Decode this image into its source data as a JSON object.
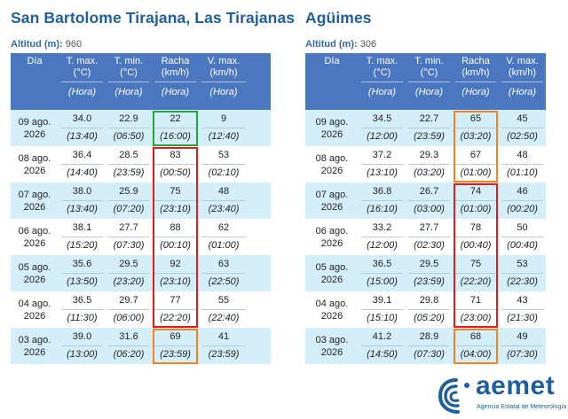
{
  "stations": [
    {
      "title": "San Bartolome Tirajana, Las Tirajanas",
      "altitude_label": "Altitud (m):",
      "altitude_value": "960",
      "headers": [
        "Día",
        "T. max.\n(°C)",
        "T. min.\n(°C)",
        "Racha\n(km/h)",
        "V. max.\n(km/h)"
      ],
      "subheaders": [
        "",
        "(Hora)",
        "(Hora)",
        "(Hora)",
        "(Hora)"
      ],
      "rows": [
        {
          "day": "09 ago.\n2026",
          "tmax": "34.0",
          "tmax_h": "(13:40)",
          "tmin": "22.9",
          "tmin_h": "(06:50)",
          "racha": "22",
          "racha_h": "(16:00)",
          "vmax": "9",
          "vmax_h": "(12:40)"
        },
        {
          "day": "08 ago.\n2026",
          "tmax": "36.4",
          "tmax_h": "(14:40)",
          "tmin": "28.5",
          "tmin_h": "(23:59)",
          "racha": "83",
          "racha_h": "(00:50)",
          "vmax": "53",
          "vmax_h": "(02:10)"
        },
        {
          "day": "07 ago.\n2026",
          "tmax": "38.0",
          "tmax_h": "(13:40)",
          "tmin": "25.9",
          "tmin_h": "(07:20)",
          "racha": "75",
          "racha_h": "(23:10)",
          "vmax": "48",
          "vmax_h": "(23:40)"
        },
        {
          "day": "06 ago.\n2026",
          "tmax": "38.1",
          "tmax_h": "(15:20)",
          "tmin": "27.7",
          "tmin_h": "(07:30)",
          "racha": "88",
          "racha_h": "(00:10)",
          "vmax": "62",
          "vmax_h": "(01:00)"
        },
        {
          "day": "05 ago.\n2026",
          "tmax": "35.6",
          "tmax_h": "(13:50)",
          "tmin": "29.5",
          "tmin_h": "(23:20)",
          "racha": "92",
          "racha_h": "(23:10)",
          "vmax": "63",
          "vmax_h": "(22:50)"
        },
        {
          "day": "04 ago.\n2026",
          "tmax": "36.5",
          "tmax_h": "(11:30)",
          "tmin": "29.7",
          "tmin_h": "(06:00)",
          "racha": "77",
          "racha_h": "(22:20)",
          "vmax": "55",
          "vmax_h": "(22:40)"
        },
        {
          "day": "03 ago.\n2026",
          "tmax": "39.0",
          "tmax_h": "(13:00)",
          "tmin": "31.6",
          "tmin_h": "(06:20)",
          "racha": "69",
          "racha_h": "(23:59)",
          "vmax": "41",
          "vmax_h": "(23:59)"
        }
      ],
      "highlights": [
        {
          "color": "green",
          "from_row": 0,
          "to_row": 0
        },
        {
          "color": "red",
          "from_row": 1,
          "to_row": 5
        },
        {
          "color": "orange",
          "from_row": 6,
          "to_row": 6
        }
      ]
    },
    {
      "title": "Agüimes",
      "altitude_label": "Altitud (m):",
      "altitude_value": "306",
      "headers": [
        "Día",
        "T. max.\n(°C)",
        "T. min.\n(°C)",
        "Racha\n(km/h)",
        "V. max.\n(km/h)"
      ],
      "subheaders": [
        "",
        "(Hora)",
        "(Hora)",
        "(Hora)",
        "(Hora)"
      ],
      "rows": [
        {
          "day": "09 ago.\n2026",
          "tmax": "34.5",
          "tmax_h": "(12:00)",
          "tmin": "22.7",
          "tmin_h": "(23:59)",
          "racha": "65",
          "racha_h": "(03:20)",
          "vmax": "45",
          "vmax_h": "(02:50)"
        },
        {
          "day": "08 ago.\n2026",
          "tmax": "37.2",
          "tmax_h": "(13:10)",
          "tmin": "29.3",
          "tmin_h": "(03:20)",
          "racha": "67",
          "racha_h": "(01:00)",
          "vmax": "48",
          "vmax_h": "(01:10)"
        },
        {
          "day": "07 ago.\n2026",
          "tmax": "36.8",
          "tmax_h": "(16:10)",
          "tmin": "26.7",
          "tmin_h": "(03:00)",
          "racha": "74",
          "racha_h": "(01:00)",
          "vmax": "46",
          "vmax_h": "(00:20)"
        },
        {
          "day": "06 ago.\n2026",
          "tmax": "33.2",
          "tmax_h": "(12:00)",
          "tmin": "27.7",
          "tmin_h": "(02:30)",
          "racha": "78",
          "racha_h": "(00:40)",
          "vmax": "50",
          "vmax_h": "(00:40)"
        },
        {
          "day": "05 ago.\n2026",
          "tmax": "36.5",
          "tmax_h": "(15:00)",
          "tmin": "29.5",
          "tmin_h": "(23:59)",
          "racha": "75",
          "racha_h": "(22:20)",
          "vmax": "53",
          "vmax_h": "(22:30)"
        },
        {
          "day": "04 ago.\n2026",
          "tmax": "39.1",
          "tmax_h": "(15:10)",
          "tmin": "29.8",
          "tmin_h": "(05:20)",
          "racha": "71",
          "racha_h": "(23:00)",
          "vmax": "43",
          "vmax_h": "(21:30)"
        },
        {
          "day": "03 ago.\n2026",
          "tmax": "41.2",
          "tmax_h": "(14:50)",
          "tmin": "28.9",
          "tmin_h": "(07:30)",
          "racha": "68",
          "racha_h": "(04:00)",
          "vmax": "49",
          "vmax_h": "(07:30)"
        }
      ],
      "highlights": [
        {
          "color": "orange",
          "from_row": 0,
          "to_row": 1
        },
        {
          "color": "red",
          "from_row": 2,
          "to_row": 5
        },
        {
          "color": "orange",
          "from_row": 6,
          "to_row": 6
        }
      ]
    }
  ],
  "logo": {
    "name": "aemet",
    "subtitle": "Agencia Estatal de Meteorología",
    "color": "#1f5f9e"
  },
  "colors": {
    "header_bg": "#4a77bf",
    "alt_row_bg": "#d4eefa",
    "title": "#1f5f9e"
  }
}
